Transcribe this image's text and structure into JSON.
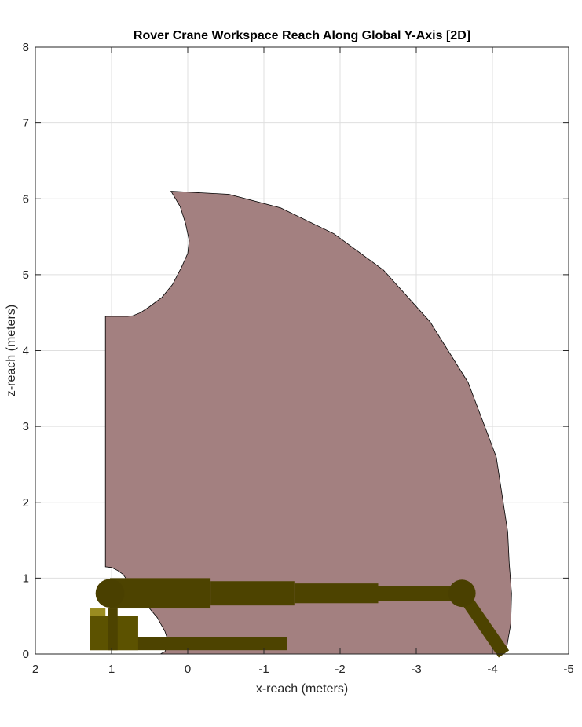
{
  "chart_data": {
    "type": "area",
    "title": "Rover Crane Workspace Reach Along Global Y-Axis [2D]",
    "xlabel": "x-reach (meters)",
    "ylabel": "z-reach (meters)",
    "xlim": [
      2,
      -5
    ],
    "ylim": [
      0,
      8
    ],
    "x_reversed": true,
    "grid": true,
    "x_ticks": [
      2,
      1,
      0,
      -1,
      -2,
      -3,
      -4,
      -5
    ],
    "x_tick_labels": [
      "2",
      "1",
      "0",
      "-1",
      "-2",
      "-3",
      "-4",
      "-5"
    ],
    "y_ticks": [
      0,
      1,
      2,
      3,
      4,
      5,
      6,
      7,
      8
    ],
    "y_tick_labels": [
      "0",
      "1",
      "2",
      "3",
      "4",
      "5",
      "6",
      "7",
      "8"
    ],
    "workspace_region": {
      "name": "reachable workspace",
      "color": "#a38080",
      "outline_color": "#000000",
      "boundary_x": [
        0.22,
        0.1,
        0.03,
        -0.02,
        0.0,
        0.08,
        0.2,
        0.34,
        0.5,
        0.62,
        0.72,
        0.79,
        1.08,
        1.08,
        1.0,
        0.92,
        0.85,
        0.8,
        0.76,
        0.7,
        0.55,
        0.4,
        0.3,
        0.25,
        0.3,
        0.36,
        -0.39,
        -0.92,
        -1.42,
        -1.87,
        -2.28,
        -2.66,
        -2.99,
        -3.3,
        -3.56,
        -3.78,
        -3.96,
        -4.1,
        -4.19,
        -4.24,
        -4.25,
        -4.22,
        -4.2,
        -4.05,
        -3.68,
        -3.18,
        -2.57,
        -1.92,
        -1.22,
        -0.54,
        0.22
      ],
      "boundary_y": [
        6.1,
        5.9,
        5.68,
        5.45,
        5.28,
        5.1,
        4.87,
        4.7,
        4.58,
        4.5,
        4.46,
        4.45,
        4.45,
        1.15,
        1.14,
        1.1,
        1.05,
        0.98,
        0.9,
        0.82,
        0.66,
        0.48,
        0.3,
        0.15,
        0.03,
        0.0,
        0.0,
        0.0,
        0.0,
        0.0,
        0.0,
        0.0,
        0.0,
        0.0,
        0.0,
        0.0,
        0.0,
        0.0,
        0.1,
        0.4,
        0.8,
        1.2,
        1.61,
        2.6,
        3.58,
        4.38,
        5.06,
        5.54,
        5.88,
        6.06,
        6.1
      ]
    },
    "crane": {
      "name": "rover crane",
      "color": "#4d4300",
      "joint_color": "#4a4000",
      "base_color": "#5c5200",
      "accent_color": "#9a8c20",
      "boom_segments": [
        {
          "x1": 1.02,
          "x2": -0.3,
          "z_center": 0.8,
          "height": 0.4
        },
        {
          "x1": -0.3,
          "x2": -1.4,
          "z_center": 0.8,
          "height": 0.32
        },
        {
          "x1": -1.4,
          "x2": -2.5,
          "z_center": 0.8,
          "height": 0.26
        },
        {
          "x1": -2.5,
          "x2": -3.6,
          "z_center": 0.8,
          "height": 0.2
        }
      ],
      "shoulder_joint": {
        "x": 1.02,
        "z": 0.8,
        "radius": 0.19
      },
      "elbow_joint": {
        "x": -3.6,
        "z": 0.8,
        "radius": 0.18
      },
      "end_link": {
        "x1": -3.6,
        "z1": 0.8,
        "x2": -4.15,
        "z2": 0.0
      },
      "base_block": {
        "x1": 1.28,
        "x2": 0.65,
        "z1": 0.05,
        "z2": 0.5
      },
      "mast": {
        "x1": 1.05,
        "x2": 0.92,
        "z1": 0.05,
        "z2": 0.6
      },
      "track": {
        "x1": 1.28,
        "x2": -1.3,
        "z1": 0.05,
        "z2": 0.22
      },
      "accent": {
        "x1": 1.28,
        "x2": 1.08,
        "z1": 0.5,
        "z2": 0.6
      }
    }
  }
}
